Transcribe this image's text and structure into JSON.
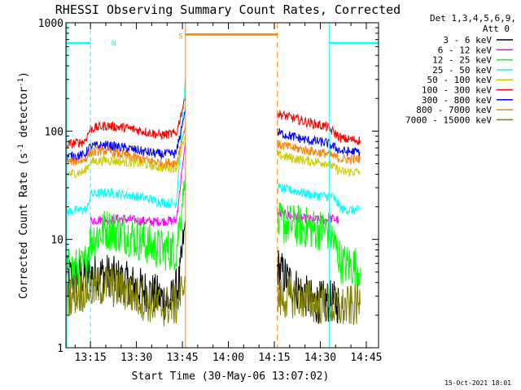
{
  "chart_data": {
    "type": "line",
    "title": "RHESSI Observing Summary Count Rates, Corrected",
    "xlabel": "Start Time (30-May-06 13:07:02)",
    "ylabel_main": "Corrected Count Rate (s",
    "ylabel_sup1": "-1",
    "ylabel_mid": " detector",
    "ylabel_sup2": "-1",
    "ylabel_end": ")",
    "y_scale": "log",
    "ylim": [
      1,
      1000
    ],
    "xlim_min": [
      787,
      889
    ],
    "x_ticks": [
      {
        "min": 795,
        "label": "13:15"
      },
      {
        "min": 810,
        "label": "13:30"
      },
      {
        "min": 825,
        "label": "13:45"
      },
      {
        "min": 840,
        "label": "14:00"
      },
      {
        "min": 855,
        "label": "14:15"
      },
      {
        "min": 870,
        "label": "14:30"
      },
      {
        "min": 885,
        "label": "14:45"
      }
    ],
    "y_ticks": [
      {
        "value": 1,
        "label": "1"
      },
      {
        "value": 10,
        "label": "10"
      },
      {
        "value": 100,
        "label": "100"
      },
      {
        "value": 1000,
        "label": "1000"
      }
    ],
    "legend_title": "Det 1,3,4,5,6,9,",
    "legend_subtitle": "Att 0",
    "series": [
      {
        "name": "3 - 6 keV",
        "color": "#000000",
        "segments": [
          [
            [
              787,
              4.5
            ],
            [
              800,
              4.8
            ],
            [
              815,
              3.2
            ],
            [
              821,
              2.6
            ],
            [
              824,
              4.0
            ],
            [
              826,
              15.0
            ]
          ],
          [
            [
              856,
              5.6
            ],
            [
              860,
              4.0
            ],
            [
              864,
              3.2
            ],
            [
              868,
              2.6
            ],
            [
              872,
              2.7
            ],
            [
              876,
              2.6
            ]
          ]
        ]
      },
      {
        "name": "6 - 12 keV",
        "color": "#ff00ff",
        "segments": [
          [
            [
              795,
              15.0
            ],
            [
              805,
              15.5
            ],
            [
              815,
              14.5
            ],
            [
              823,
              15.0
            ],
            [
              826,
              80.0
            ]
          ],
          [
            [
              856,
              17.5
            ],
            [
              860,
              16.5
            ],
            [
              865,
              15.5
            ],
            [
              871,
              15.0
            ],
            [
              874,
              15.5
            ],
            [
              876,
              15.0
            ]
          ]
        ]
      },
      {
        "name": "12 - 25 keV",
        "color": "#00ff00",
        "segments": [
          [
            [
              787,
              5.2
            ],
            [
              793,
              5.5
            ],
            [
              795,
              10.0
            ],
            [
              800,
              12.5
            ],
            [
              806,
              11.5
            ],
            [
              812,
              9.5
            ],
            [
              818,
              8.0
            ],
            [
              823,
              8.0
            ],
            [
              826,
              40.0
            ]
          ],
          [
            [
              856,
              14.0
            ],
            [
              862,
              13.5
            ],
            [
              868,
              12.5
            ],
            [
              873,
              12.0
            ],
            [
              877,
              6.0
            ],
            [
              883,
              5.5
            ]
          ]
        ]
      },
      {
        "name": "25 - 50 keV",
        "color": "#00ffff",
        "segments": [
          [
            [
              787,
              18.0
            ],
            [
              794,
              19.0
            ],
            [
              795,
              26.0
            ],
            [
              800,
              27.0
            ],
            [
              806,
              26.0
            ],
            [
              812,
              24.5
            ],
            [
              818,
              22.0
            ],
            [
              823,
              21.5
            ],
            [
              826,
              300.0
            ]
          ],
          [
            [
              856,
              30.0
            ],
            [
              862,
              28.0
            ],
            [
              868,
              25.5
            ],
            [
              874,
              25.0
            ],
            [
              877,
              19.0
            ],
            [
              883,
              18.5
            ]
          ]
        ]
      },
      {
        "name": "50 - 100 keV",
        "color": "#cccc00",
        "segments": [
          [
            [
              787,
              40.0
            ],
            [
              793,
              42.0
            ],
            [
              795,
              52.0
            ],
            [
              800,
              54.0
            ],
            [
              806,
              52.0
            ],
            [
              812,
              50.0
            ],
            [
              818,
              46.0
            ],
            [
              823,
              46.0
            ],
            [
              826,
              90.0
            ]
          ],
          [
            [
              856,
              60.0
            ],
            [
              861,
              56.0
            ],
            [
              866,
              53.0
            ],
            [
              872,
              51.0
            ],
            [
              877,
              42.0
            ],
            [
              883,
              42.0
            ]
          ]
        ]
      },
      {
        "name": "100 - 300 keV",
        "color": "#ff0000",
        "segments": [
          [
            [
              787,
              75.0
            ],
            [
              793,
              80.0
            ],
            [
              795,
              105.0
            ],
            [
              800,
              112.0
            ],
            [
              806,
              108.0
            ],
            [
              812,
              100.0
            ],
            [
              818,
              92.0
            ],
            [
              823,
              95.0
            ],
            [
              826,
              210.0
            ]
          ],
          [
            [
              856,
              145.0
            ],
            [
              861,
              132.0
            ],
            [
              866,
              120.0
            ],
            [
              872,
              110.0
            ],
            [
              877,
              85.0
            ],
            [
              883,
              82.0
            ]
          ]
        ]
      },
      {
        "name": "300 - 800 keV",
        "color": "#0000ff",
        "segments": [
          [
            [
              787,
              58.0
            ],
            [
              793,
              60.0
            ],
            [
              795,
              72.0
            ],
            [
              800,
              74.0
            ],
            [
              806,
              70.0
            ],
            [
              812,
              65.0
            ],
            [
              818,
              61.0
            ],
            [
              823,
              62.0
            ],
            [
              826,
              160.0
            ]
          ],
          [
            [
              856,
              97.0
            ],
            [
              861,
              89.0
            ],
            [
              866,
              82.0
            ],
            [
              872,
              78.0
            ],
            [
              877,
              65.0
            ],
            [
              883,
              64.0
            ]
          ]
        ]
      },
      {
        "name": "800 - 7000 keV",
        "color": "#ff8000",
        "segments": [
          [
            [
              787,
              52.0
            ],
            [
              793,
              54.0
            ],
            [
              795,
              64.0
            ],
            [
              800,
              66.0
            ],
            [
              806,
              60.0
            ],
            [
              812,
              55.0
            ],
            [
              818,
              51.0
            ],
            [
              823,
              51.0
            ],
            [
              826,
              110.0
            ]
          ],
          [
            [
              856,
              75.0
            ],
            [
              861,
              70.0
            ],
            [
              866,
              66.0
            ],
            [
              872,
              62.0
            ],
            [
              877,
              55.0
            ],
            [
              883,
              55.0
            ]
          ]
        ]
      },
      {
        "name": "7000 - 15000 keV",
        "color": "#808000",
        "segments": [
          [
            [
              787,
              3.0
            ],
            [
              795,
              3.5
            ],
            [
              800,
              3.8
            ],
            [
              805,
              3.5
            ],
            [
              812,
              2.8
            ],
            [
              818,
              2.4
            ],
            [
              823,
              2.5
            ],
            [
              826,
              4.0
            ]
          ],
          [
            [
              856,
              2.8
            ],
            [
              862,
              3.0
            ],
            [
              868,
              2.6
            ],
            [
              872,
              2.5
            ],
            [
              876,
              2.3
            ],
            [
              883,
              2.5
            ]
          ]
        ]
      }
    ],
    "annotations": [
      {
        "name": "night-band-left",
        "kind": "N",
        "x0": 787,
        "x1": 795,
        "level": 650,
        "color": "#00ffff",
        "label": "N"
      },
      {
        "name": "night-band-right",
        "kind": "N",
        "x0": 873,
        "x1": 889,
        "level": 650,
        "color": "#00ffff",
        "label": ""
      },
      {
        "name": "saa-band",
        "kind": "S",
        "x0": 826,
        "x1": 856,
        "level": 780,
        "color": "#ff8000",
        "label": "S"
      }
    ]
  },
  "footer_date": "15-Oct-2021 18:01"
}
